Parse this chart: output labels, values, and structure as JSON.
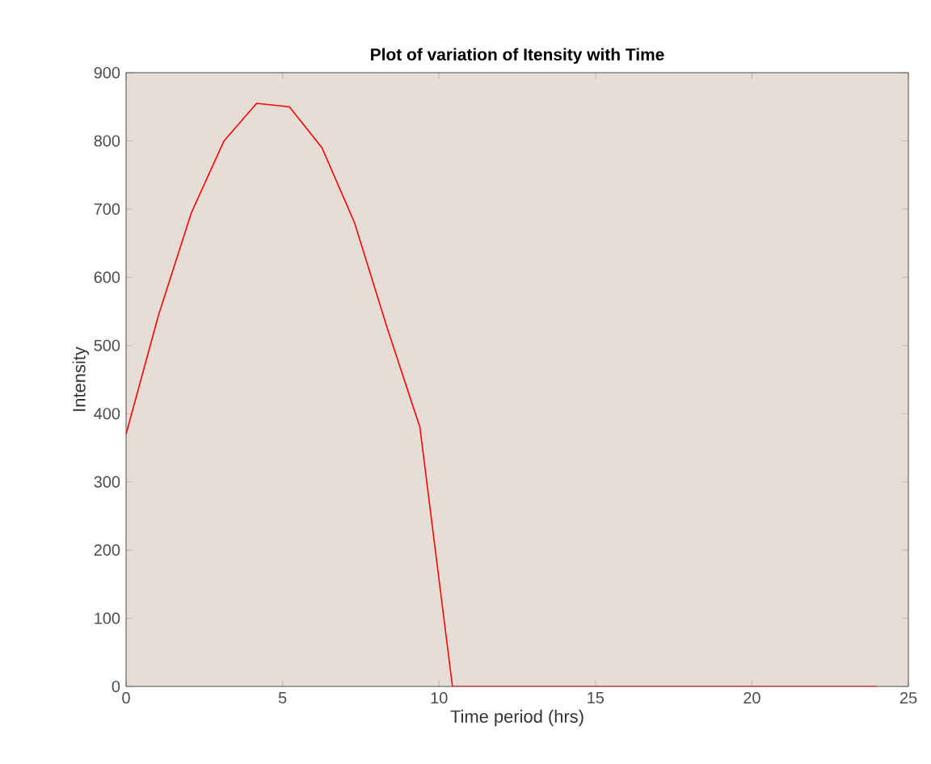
{
  "chart_data": {
    "type": "line",
    "title": "Plot of variation of Itensity with Time",
    "xlabel": "Time period (hrs)",
    "ylabel": "Intensity",
    "x": [
      0,
      1.04,
      2.09,
      3.13,
      4.17,
      5.22,
      6.26,
      7.3,
      8.35,
      9.39,
      10.43,
      24
    ],
    "series": [
      {
        "color": "#ff0000",
        "values": [
          370,
          545,
          695,
          800,
          855,
          850,
          790,
          680,
          525,
          380,
          0,
          0
        ]
      }
    ],
    "xlim": [
      0,
      25
    ],
    "ylim": [
      0,
      900
    ],
    "xticks": [
      0,
      5,
      10,
      15,
      20,
      25
    ],
    "yticks": [
      0,
      100,
      200,
      300,
      400,
      500,
      600,
      700,
      800,
      900
    ],
    "grid": false,
    "marker": "none",
    "line_style": "solid"
  }
}
